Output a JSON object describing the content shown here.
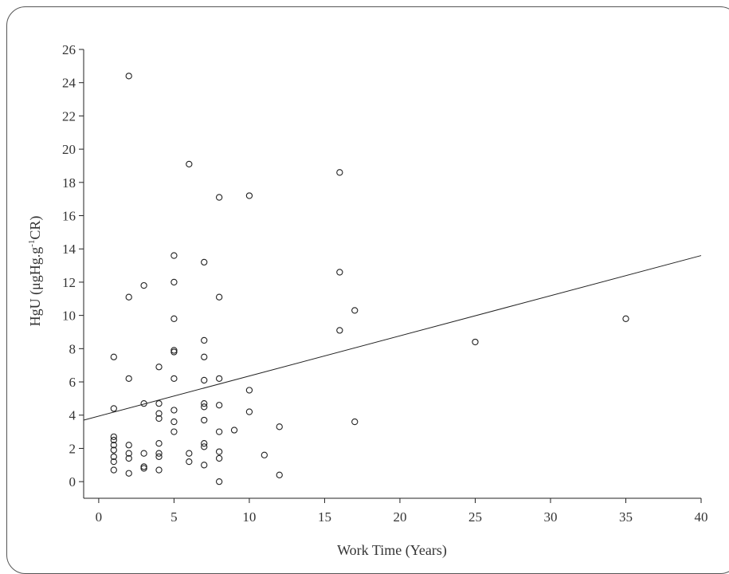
{
  "chart_data": {
    "type": "scatter",
    "xlabel": "Work Time (Years)",
    "ylabel_main": "HgU (μgHg.g",
    "ylabel_sup": "-1",
    "ylabel_tail": "CR)",
    "xlim": [
      -1,
      40
    ],
    "ylim": [
      -1,
      26
    ],
    "xticks": [
      0,
      5,
      10,
      15,
      20,
      25,
      30,
      35,
      40
    ],
    "yticks": [
      0,
      2,
      4,
      6,
      8,
      10,
      12,
      14,
      16,
      18,
      20,
      22,
      24,
      26
    ],
    "grid": false,
    "marker": "open-circle",
    "colors": {
      "axis": "#222222",
      "points": "#222222",
      "line": "#222222",
      "text": "#333333"
    },
    "points": [
      [
        2,
        24.4
      ],
      [
        6,
        19.1
      ],
      [
        16,
        18.6
      ],
      [
        8,
        17.1
      ],
      [
        10,
        17.2
      ],
      [
        5,
        13.6
      ],
      [
        7,
        13.2
      ],
      [
        16,
        12.6
      ],
      [
        5,
        12.0
      ],
      [
        3,
        11.8
      ],
      [
        2,
        11.1
      ],
      [
        8,
        11.1
      ],
      [
        17,
        10.3
      ],
      [
        5,
        9.8
      ],
      [
        35,
        9.8
      ],
      [
        16,
        9.1
      ],
      [
        7,
        8.5
      ],
      [
        25,
        8.4
      ],
      [
        5,
        7.9
      ],
      [
        5,
        7.8
      ],
      [
        1,
        7.5
      ],
      [
        7,
        7.5
      ],
      [
        4,
        6.9
      ],
      [
        2,
        6.2
      ],
      [
        5,
        6.2
      ],
      [
        8,
        6.2
      ],
      [
        7,
        6.1
      ],
      [
        10,
        5.5
      ],
      [
        3,
        4.7
      ],
      [
        4,
        4.7
      ],
      [
        7,
        4.7
      ],
      [
        8,
        4.6
      ],
      [
        7,
        4.5
      ],
      [
        1,
        4.4
      ],
      [
        5,
        4.3
      ],
      [
        10,
        4.2
      ],
      [
        4,
        4.1
      ],
      [
        4,
        3.8
      ],
      [
        7,
        3.7
      ],
      [
        17,
        3.6
      ],
      [
        5,
        3.6
      ],
      [
        12,
        3.3
      ],
      [
        9,
        3.1
      ],
      [
        5,
        3.0
      ],
      [
        8,
        3.0
      ],
      [
        1,
        2.7
      ],
      [
        1,
        2.5
      ],
      [
        4,
        2.3
      ],
      [
        7,
        2.3
      ],
      [
        1,
        2.2
      ],
      [
        2,
        2.2
      ],
      [
        7,
        2.1
      ],
      [
        1,
        1.9
      ],
      [
        8,
        1.8
      ],
      [
        2,
        1.7
      ],
      [
        3,
        1.7
      ],
      [
        4,
        1.7
      ],
      [
        6,
        1.7
      ],
      [
        11,
        1.6
      ],
      [
        1,
        1.5
      ],
      [
        4,
        1.5
      ],
      [
        2,
        1.4
      ],
      [
        8,
        1.4
      ],
      [
        1,
        1.2
      ],
      [
        6,
        1.2
      ],
      [
        7,
        1.0
      ],
      [
        3,
        0.9
      ],
      [
        3,
        0.8
      ],
      [
        1,
        0.7
      ],
      [
        4,
        0.7
      ],
      [
        2,
        0.5
      ],
      [
        12,
        0.4
      ],
      [
        8,
        0.0
      ]
    ],
    "regression_line": {
      "x": [
        -1,
        40
      ],
      "y": [
        3.7,
        13.6
      ]
    }
  }
}
